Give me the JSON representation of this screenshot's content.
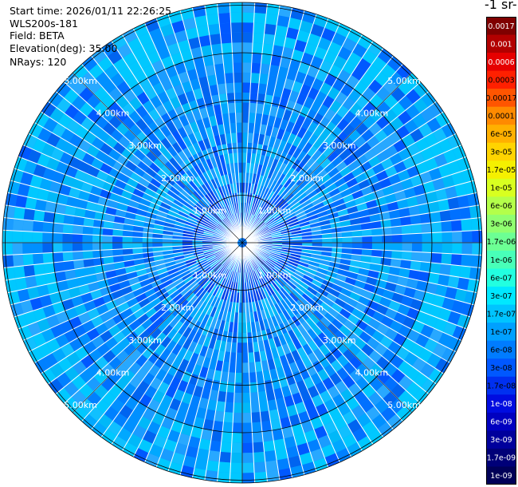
{
  "header": {
    "start_time": "Start time: 2026/01/11 22:26:25",
    "instrument": "WLS200s-181",
    "field": "Field: BETA",
    "elevation": "Elevation(deg): 35.00",
    "nrays": "NRays: 120"
  },
  "colorbar": {
    "title_fragment": "-1 sr-",
    "labels": [
      "0.0017",
      "0.001",
      "0.0006",
      "0.0003",
      "0.00017",
      "0.0001",
      "6e-05",
      "3e-05",
      "1.7e-05",
      "1e-05",
      "6e-06",
      "3e-06",
      "1.7e-06",
      "1e-06",
      "6e-07",
      "3e-07",
      "1.7e-07",
      "1e-07",
      "6e-08",
      "3e-08",
      "1.7e-08",
      "1e-08",
      "6e-09",
      "3e-09",
      "1.7e-09",
      "1e-09"
    ],
    "colors": [
      "#7f0000",
      "#b20000",
      "#e60000",
      "#ff2000",
      "#ff5500",
      "#ff8a00",
      "#ffb000",
      "#ffd400",
      "#f5f000",
      "#d8ff20",
      "#b4ff4a",
      "#90ff70",
      "#6cff94",
      "#48ffb8",
      "#22ffe0",
      "#00e8ff",
      "#00c4ff",
      "#00a0ff",
      "#007cff",
      "#0058ff",
      "#0030f0",
      "#000ce0",
      "#0000c0",
      "#00009c",
      "#000078",
      "#000058"
    ]
  },
  "range_rings": {
    "labels": [
      "1.00km",
      "2.00km",
      "3.00km",
      "4.00km",
      "5.00km"
    ]
  },
  "chart_data": {
    "type": "heatmap",
    "projection": "polar PPI scan",
    "field": "BETA",
    "nrays": 120,
    "elevation_deg": 35.0,
    "range_rings_km": [
      1,
      2,
      3,
      4,
      5
    ],
    "dominant_level": "3e-08 to 1e-07",
    "ray_azimuth_step_deg": 3.0
  }
}
